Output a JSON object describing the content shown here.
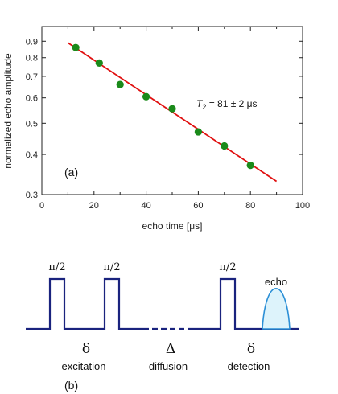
{
  "chart_data": {
    "type": "scatter",
    "xlabel": "echo time [μs]",
    "ylabel": "normalized echo amplitude",
    "xlim": [
      0,
      100
    ],
    "ylim": [
      0.3,
      1.0
    ],
    "yscale": "log",
    "x_ticks": [
      0,
      20,
      40,
      60,
      80,
      100
    ],
    "y_ticks": [
      0.3,
      0.4,
      0.5,
      0.6,
      0.7,
      0.8,
      0.9
    ],
    "points": [
      {
        "x": 13,
        "y": 0.86
      },
      {
        "x": 22,
        "y": 0.77
      },
      {
        "x": 30,
        "y": 0.66
      },
      {
        "x": 40,
        "y": 0.605
      },
      {
        "x": 50,
        "y": 0.555
      },
      {
        "x": 60,
        "y": 0.47
      },
      {
        "x": 70,
        "y": 0.425
      },
      {
        "x": 80,
        "y": 0.37
      }
    ],
    "fit": {
      "x0": 10,
      "y0": 0.89,
      "x1": 90,
      "y1": 0.33
    },
    "annotation": {
      "symbol": "T",
      "subscript": "2",
      "text": " = 81 ± 2 μs"
    },
    "panel_label": "(a)",
    "colors": {
      "points": "#1a8a1a",
      "fit": "#e01010"
    }
  },
  "sequence": {
    "pulse_labels": [
      "π/2",
      "π/2",
      "π/2"
    ],
    "echo_label": "echo",
    "deltas": [
      "δ",
      "Δ",
      "δ"
    ],
    "phases": [
      "excitation",
      "diffusion",
      "detection"
    ],
    "panel_label": "(b)",
    "colors": {
      "line": "#1a237e",
      "echo_fill": "#ddf3fb",
      "echo_stroke": "#2b8fd6"
    }
  }
}
